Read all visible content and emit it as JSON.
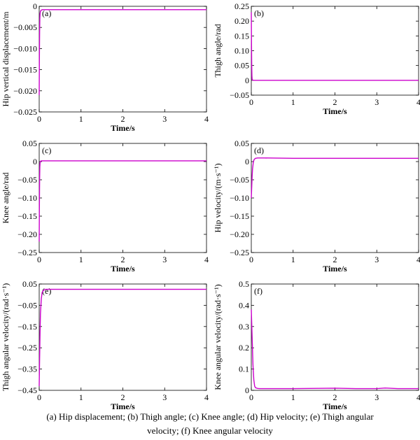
{
  "caption": {
    "line1": "(a) Hip displacement; (b) Thigh angle; (c) Knee angle; (d) Hip velocity; (e) Thigh angular",
    "line2": "velocity; (f) Knee angular velocity"
  },
  "colors": {
    "curve": "#cc00cc",
    "axis": "#000000"
  },
  "chart_data": [
    {
      "type": "line",
      "panel": "(a)",
      "xlabel": "Time/s",
      "ylabel": "Hip vertical displacement/m",
      "xlim": [
        0,
        4
      ],
      "ylim": [
        -0.025,
        0
      ],
      "xticks": [
        0,
        1,
        2,
        3,
        4
      ],
      "yticks": [
        0,
        -0.005,
        -0.01,
        -0.015,
        -0.02,
        -0.025
      ],
      "ytick_labels": [
        "0",
        "−0.005",
        "−0.010",
        "−0.015",
        "−0.020",
        "−0.025"
      ],
      "series": [
        {
          "x": [
            0,
            0.005,
            0.01,
            0.015,
            0.02,
            0.03,
            0.05,
            0.08,
            0.2,
            1,
            2,
            3,
            4
          ],
          "y": [
            -0.021,
            -0.012,
            -0.006,
            -0.003,
            -0.0018,
            -0.0012,
            -0.0009,
            -0.0008,
            -0.0008,
            -0.0008,
            -0.0008,
            -0.0008,
            -0.0008
          ]
        }
      ]
    },
    {
      "type": "line",
      "panel": "(b)",
      "xlabel": "Time/s",
      "ylabel": "Thigh angle/rad",
      "xlim": [
        0,
        4
      ],
      "ylim": [
        -0.05,
        0.25
      ],
      "xticks": [
        0,
        1,
        2,
        3,
        4
      ],
      "yticks": [
        0.25,
        0.2,
        0.15,
        0.1,
        0.05,
        0,
        -0.05
      ],
      "ytick_labels": [
        "0.25",
        "0.20",
        "0.15",
        "0.10",
        "0.05",
        "0",
        "−0.05"
      ],
      "series": [
        {
          "x": [
            0,
            0.005,
            0.01,
            0.015,
            0.02,
            0.03,
            0.05,
            1,
            2,
            3,
            4
          ],
          "y": [
            0.23,
            0.12,
            0.05,
            0.015,
            0.004,
            0.001,
            0,
            0,
            0,
            0,
            0
          ]
        }
      ]
    },
    {
      "type": "line",
      "panel": "(c)",
      "xlabel": "Time/s",
      "ylabel": "Knee angle/rad",
      "xlim": [
        0,
        4
      ],
      "ylim": [
        -0.25,
        0.05
      ],
      "xticks": [
        0,
        1,
        2,
        3,
        4
      ],
      "yticks": [
        0.05,
        0,
        -0.05,
        -0.1,
        -0.15,
        -0.2,
        -0.25
      ],
      "ytick_labels": [
        "0.05",
        "0",
        "−0.05",
        "−0.10",
        "−0.15",
        "−0.20",
        "−0.25"
      ],
      "series": [
        {
          "x": [
            0,
            0.005,
            0.01,
            0.015,
            0.02,
            0.03,
            0.05,
            1,
            2,
            3,
            4
          ],
          "y": [
            -0.22,
            -0.12,
            -0.05,
            -0.015,
            -0.004,
            0.001,
            0.002,
            0.002,
            0.002,
            0.002,
            0.002
          ]
        }
      ]
    },
    {
      "type": "line",
      "panel": "(d)",
      "xlabel": "Time/s",
      "ylabel": "Hip velocity/(m·s⁻¹)",
      "xlim": [
        0,
        4
      ],
      "ylim": [
        -0.25,
        0.05
      ],
      "xticks": [
        0,
        1,
        2,
        3,
        4
      ],
      "yticks": [
        0.05,
        0,
        -0.05,
        -0.1,
        -0.15,
        -0.2,
        -0.25
      ],
      "ytick_labels": [
        "0.05",
        "0",
        "−0.05",
        "−0.10",
        "−0.15",
        "−0.20",
        "−0.25"
      ],
      "series": [
        {
          "x": [
            0,
            0.01,
            0.02,
            0.03,
            0.05,
            0.07,
            0.1,
            0.15,
            0.3,
            1,
            2,
            3,
            4
          ],
          "y": [
            -0.1,
            -0.07,
            -0.04,
            -0.02,
            0,
            0.006,
            0.009,
            0.01,
            0.01,
            0.009,
            0.009,
            0.009,
            0.009
          ]
        }
      ]
    },
    {
      "type": "line",
      "panel": "(e)",
      "xlabel": "Time/s",
      "ylabel": "Thigh angular velocity/(rad·s⁻¹)",
      "xlim": [
        0,
        4
      ],
      "ylim": [
        -0.45,
        0.05
      ],
      "xticks": [
        0,
        1,
        2,
        3,
        4
      ],
      "yticks": [
        0.05,
        -0.05,
        -0.15,
        -0.25,
        -0.35,
        -0.45
      ],
      "ytick_labels": [
        "0.05",
        "−0.05",
        "−0.15",
        "−0.25",
        "−0.35",
        "−0.45"
      ],
      "series": [
        {
          "x": [
            0,
            0.01,
            0.02,
            0.03,
            0.05,
            0.07,
            0.1,
            0.15,
            0.3,
            1,
            2,
            3,
            4
          ],
          "y": [
            -0.43,
            -0.3,
            -0.18,
            -0.09,
            -0.02,
            0.01,
            0.02,
            0.025,
            0.025,
            0.025,
            0.025,
            0.025,
            0.025
          ]
        }
      ]
    },
    {
      "type": "line",
      "panel": "(f)",
      "xlabel": "Time/s",
      "ylabel": "Knee angular velocity/(rad·s⁻¹)",
      "xlim": [
        0,
        4
      ],
      "ylim": [
        0,
        0.5
      ],
      "xticks": [
        0,
        1,
        2,
        3,
        4
      ],
      "yticks": [
        0.5,
        0.4,
        0.3,
        0.2,
        0.1,
        0
      ],
      "ytick_labels": [
        "0.5",
        "0.4",
        "0.3",
        "0.2",
        "0.1",
        "0"
      ],
      "series": [
        {
          "x": [
            0,
            0.02,
            0.04,
            0.06,
            0.08,
            0.1,
            0.15,
            0.2,
            0.3,
            1,
            2,
            2.5,
            3,
            3.2,
            3.5,
            4
          ],
          "y": [
            0.38,
            0.25,
            0.12,
            0.05,
            0.02,
            0.012,
            0.009,
            0.008,
            0.008,
            0.008,
            0.01,
            0.008,
            0.008,
            0.011,
            0.008,
            0.008
          ]
        }
      ]
    }
  ]
}
